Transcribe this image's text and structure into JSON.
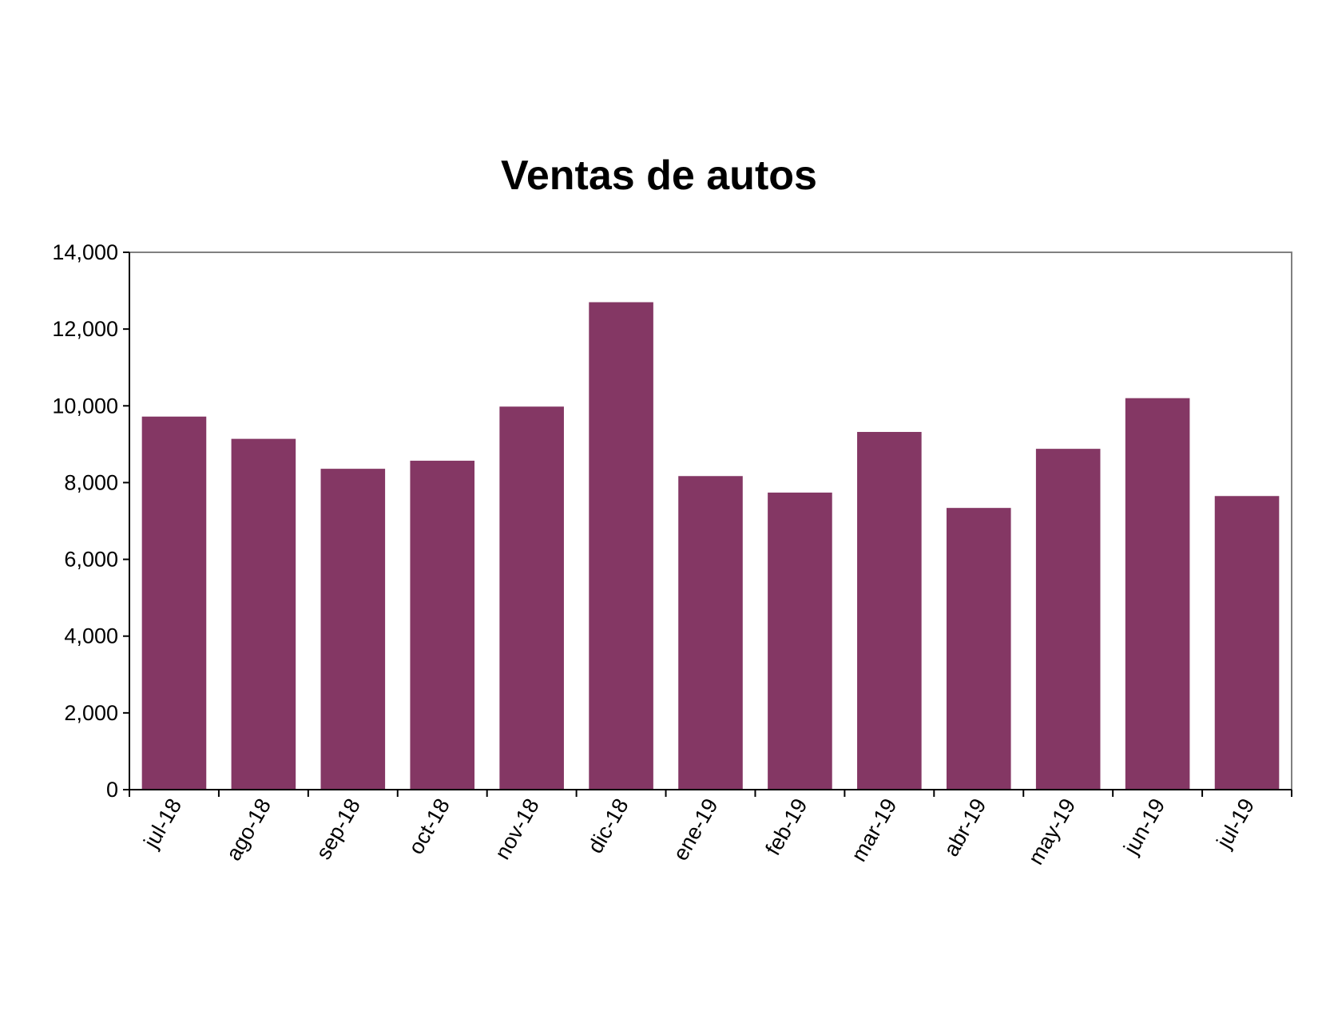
{
  "chart_data": {
    "type": "bar",
    "title": "Ventas de autos",
    "xlabel": "",
    "ylabel": "",
    "categories": [
      "jul-18",
      "ago-18",
      "sep-18",
      "oct-18",
      "nov-18",
      "dic-18",
      "ene-19",
      "feb-19",
      "mar-19",
      "abr-19",
      "may-19",
      "jun-19",
      "jul-19"
    ],
    "values": [
      9720,
      9140,
      8360,
      8570,
      9980,
      12700,
      8170,
      7740,
      9320,
      7340,
      8880,
      10200,
      7650
    ],
    "ylim": [
      0,
      14000
    ],
    "yticks": [
      0,
      2000,
      4000,
      6000,
      8000,
      10000,
      12000,
      14000
    ],
    "ytick_labels": [
      "0",
      "2,000",
      "4,000",
      "6,000",
      "8,000",
      "10,000",
      "12,000",
      "14,000"
    ],
    "grid": false,
    "legend": "none",
    "bar_color": "#843764"
  }
}
